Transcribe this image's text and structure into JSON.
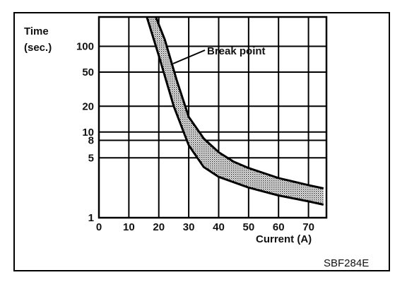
{
  "chart_data": {
    "type": "area",
    "x_label": "Current (A)",
    "y_label_line1": "Time",
    "y_label_line2": "(sec.)",
    "x_ticks": [
      0,
      10,
      20,
      30,
      40,
      50,
      60,
      70
    ],
    "y_ticks": [
      1,
      5,
      8,
      10,
      20,
      50,
      100
    ],
    "xlim": [
      0,
      76
    ],
    "ylim": [
      1,
      220
    ],
    "y_scale": "log",
    "grid": true,
    "series": [
      {
        "name": "",
        "x": [
          16,
          20,
          25,
          30,
          35,
          40,
          50,
          60,
          70,
          75
        ],
        "y": [
          220,
          78,
          20,
          7,
          3.9,
          3.0,
          2.25,
          1.82,
          1.55,
          1.42
        ]
      },
      {
        "name": "",
        "x": [
          19,
          22,
          26,
          30,
          35,
          40,
          45,
          50,
          60,
          70,
          75
        ],
        "y": [
          220,
          120,
          40,
          15,
          8.4,
          5.8,
          4.5,
          3.8,
          2.9,
          2.4,
          2.2
        ]
      }
    ],
    "annotations": [
      {
        "text": "Break point",
        "x": 22,
        "y": 60
      }
    ],
    "figure_code": "SBF284E"
  }
}
